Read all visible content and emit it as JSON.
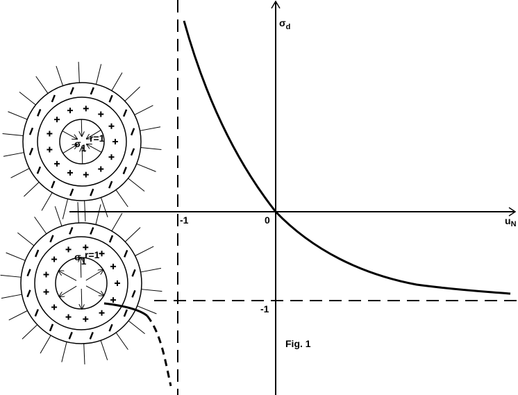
{
  "axes": {
    "y_label": "σ",
    "y_label_sub": "d",
    "x_label": "u",
    "x_label_sub": "N",
    "x_tick_neg": "-1",
    "origin": "0",
    "y_tick_neg": "-1"
  },
  "spheres": [
    {
      "charge": "σ",
      "charge_sub": "1",
      "radius": "r=1"
    },
    {
      "charge": "σ",
      "charge_sub": "1",
      "radius": "r=1"
    }
  ],
  "caption": "Fig. 1"
}
